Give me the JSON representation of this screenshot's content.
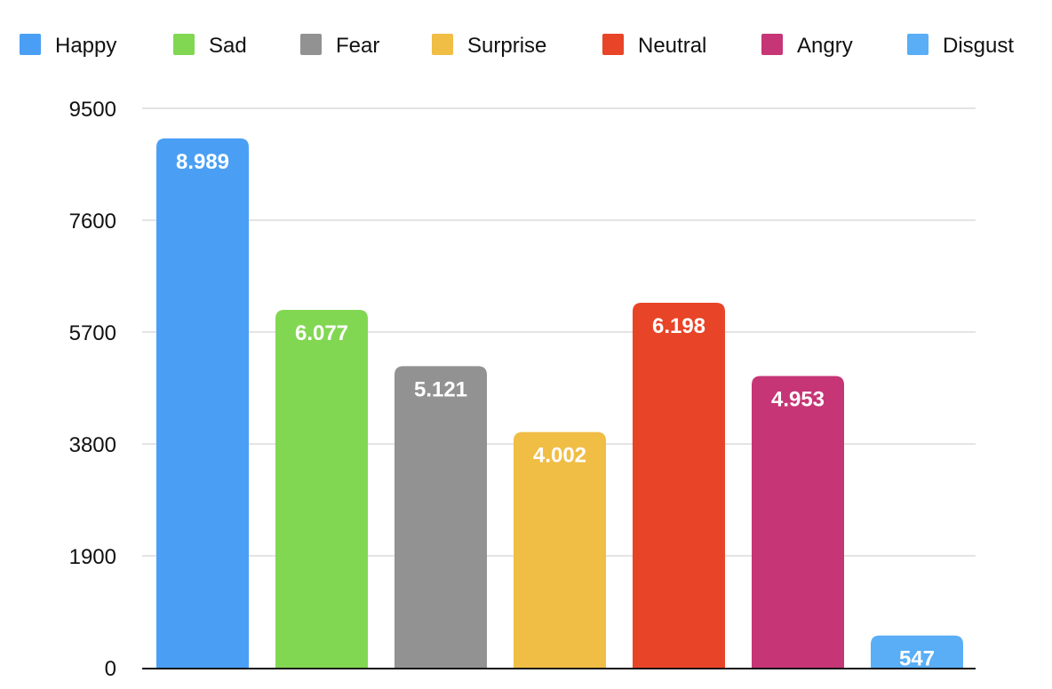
{
  "chart_data": {
    "type": "bar",
    "title": "",
    "xlabel": "",
    "ylabel": "",
    "ylim": [
      0,
      9500
    ],
    "yticks": [
      0,
      1900,
      3800,
      5700,
      7600,
      9500
    ],
    "y_tick_labels": [
      "0",
      "1900",
      "3800",
      "5700",
      "7600",
      "9500"
    ],
    "grid": true,
    "legend_position": "top",
    "categories": [
      "Happy",
      "Sad",
      "Fear",
      "Surprise",
      "Neutral",
      "Angry",
      "Disgust"
    ],
    "values": [
      8989,
      6077,
      5121,
      4002,
      6198,
      4953,
      547
    ],
    "data_labels": [
      "8.989",
      "6.077",
      "5.121",
      "4.002",
      "6.198",
      "4.953",
      "547"
    ],
    "colors": [
      "#4a9ff5",
      "#82d752",
      "#929292",
      "#f0bd45",
      "#e84428",
      "#c63575",
      "#5aaef5"
    ]
  }
}
